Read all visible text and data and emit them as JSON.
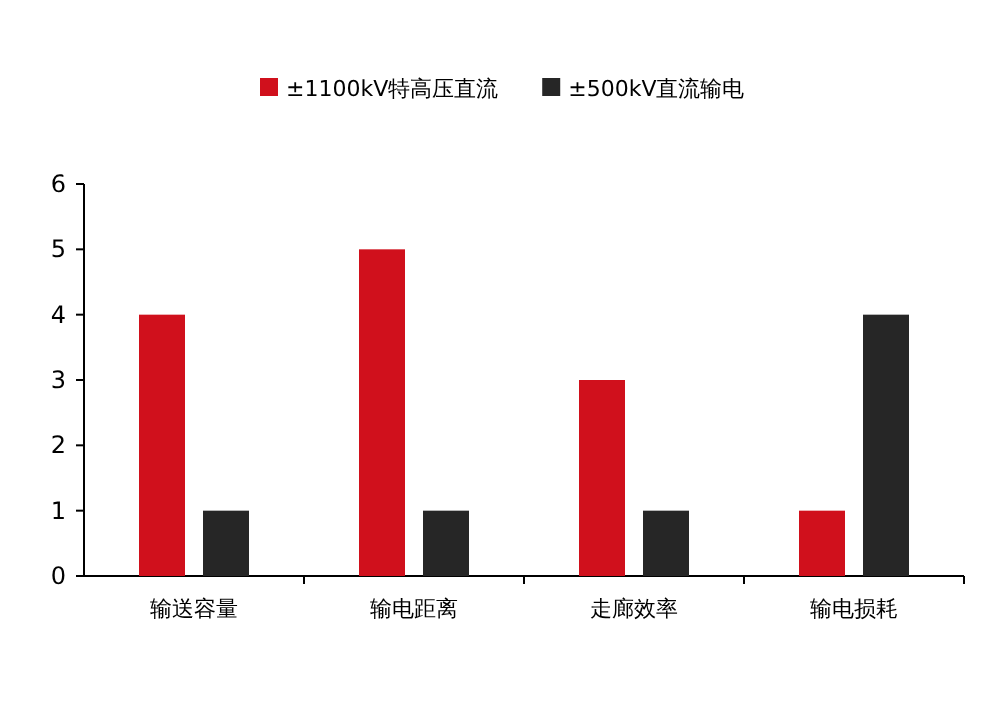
{
  "chart_data": {
    "type": "bar",
    "categories": [
      "输送容量",
      "输电距离",
      "走廊效率",
      "输电损耗"
    ],
    "series": [
      {
        "name": "±1100kV特高压直流",
        "color": "#d0101c",
        "values": [
          4,
          5,
          3,
          1
        ]
      },
      {
        "name": "±500kV直流输电",
        "color": "#262626",
        "values": [
          1,
          1,
          1,
          4
        ]
      }
    ],
    "ylim": [
      0,
      6
    ],
    "yticks": [
      0,
      1,
      2,
      3,
      4,
      5,
      6
    ],
    "legend": "top",
    "grid": false
  }
}
